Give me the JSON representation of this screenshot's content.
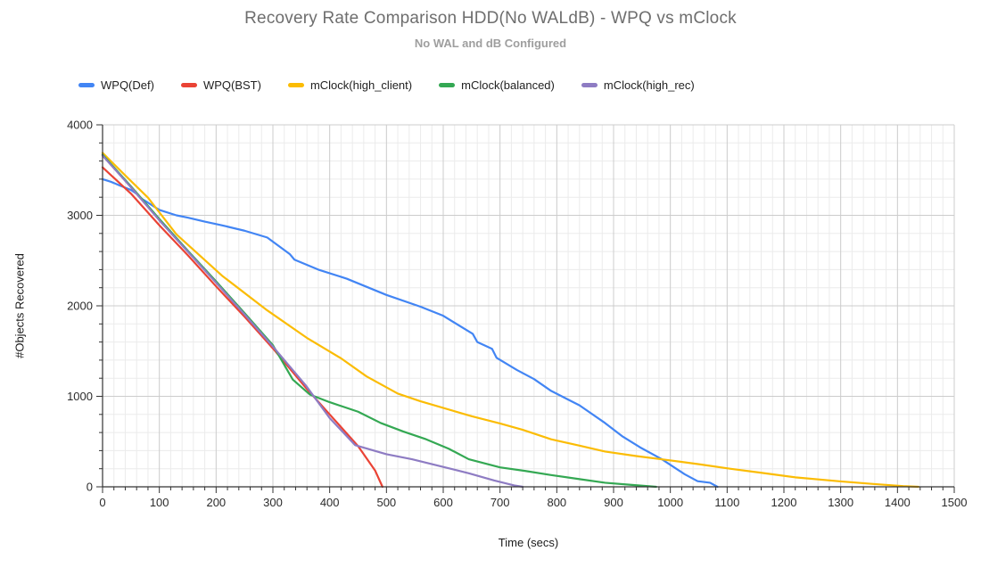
{
  "title": "Recovery Rate Comparison HDD(No WALdB) - WPQ vs mClock",
  "subtitle": "No WAL and dB Configured",
  "axes": {
    "x_label": "Time (secs)",
    "y_label": "#Objects Recovered"
  },
  "chart_data": {
    "type": "line",
    "title": "Recovery Rate Comparison HDD(No WALdB) - WPQ vs mClock",
    "subtitle": "No WAL and dB Configured",
    "xlabel": "Time (secs)",
    "ylabel": "#Objects Recovered",
    "xlim": [
      0,
      1500
    ],
    "ylim": [
      0,
      4000
    ],
    "x_major_step": 100,
    "x_minor_step": 20,
    "y_major_step": 1000,
    "y_minor_step": 200,
    "x_ticks": [
      0,
      100,
      200,
      300,
      400,
      500,
      600,
      700,
      800,
      900,
      1000,
      1100,
      1200,
      1300,
      1400,
      1500
    ],
    "y_ticks": [
      0,
      1000,
      2000,
      3000,
      4000
    ],
    "grid": true,
    "legend_position": "top",
    "colors": {
      "major_grid": "#cccccc",
      "minor_grid": "#ebebeb",
      "axis": "#333333"
    },
    "series": [
      {
        "name": "WPQ(Def)",
        "color": "#4285F4",
        "points": [
          [
            0,
            3400
          ],
          [
            15,
            3370
          ],
          [
            30,
            3330
          ],
          [
            50,
            3280
          ],
          [
            62,
            3230
          ],
          [
            66,
            3195
          ],
          [
            80,
            3140
          ],
          [
            100,
            3060
          ],
          [
            130,
            3000
          ],
          [
            150,
            2975
          ],
          [
            180,
            2930
          ],
          [
            210,
            2890
          ],
          [
            250,
            2830
          ],
          [
            290,
            2755
          ],
          [
            330,
            2570
          ],
          [
            338,
            2510
          ],
          [
            380,
            2400
          ],
          [
            430,
            2300
          ],
          [
            500,
            2120
          ],
          [
            560,
            1990
          ],
          [
            600,
            1890
          ],
          [
            652,
            1690
          ],
          [
            660,
            1600
          ],
          [
            686,
            1525
          ],
          [
            694,
            1425
          ],
          [
            730,
            1290
          ],
          [
            760,
            1190
          ],
          [
            790,
            1060
          ],
          [
            840,
            900
          ],
          [
            885,
            705
          ],
          [
            915,
            560
          ],
          [
            947,
            435
          ],
          [
            985,
            305
          ],
          [
            1025,
            140
          ],
          [
            1048,
            62
          ],
          [
            1070,
            45
          ],
          [
            1083,
            0
          ]
        ]
      },
      {
        "name": "WPQ(BST)",
        "color": "#EA4335",
        "points": [
          [
            0,
            3530
          ],
          [
            50,
            3240
          ],
          [
            100,
            2890
          ],
          [
            150,
            2560
          ],
          [
            200,
            2215
          ],
          [
            250,
            1880
          ],
          [
            300,
            1530
          ],
          [
            360,
            1080
          ],
          [
            400,
            800
          ],
          [
            450,
            450
          ],
          [
            480,
            180
          ],
          [
            493,
            0
          ]
        ]
      },
      {
        "name": "mClock(high_client)",
        "color": "#FBBC04",
        "points": [
          [
            0,
            3690
          ],
          [
            40,
            3440
          ],
          [
            80,
            3195
          ],
          [
            130,
            2790
          ],
          [
            210,
            2335
          ],
          [
            290,
            1950
          ],
          [
            360,
            1645
          ],
          [
            420,
            1420
          ],
          [
            465,
            1220
          ],
          [
            520,
            1030
          ],
          [
            560,
            945
          ],
          [
            650,
            780
          ],
          [
            700,
            700
          ],
          [
            740,
            630
          ],
          [
            790,
            525
          ],
          [
            840,
            455
          ],
          [
            885,
            390
          ],
          [
            940,
            340
          ],
          [
            990,
            300
          ],
          [
            1050,
            250
          ],
          [
            1105,
            200
          ],
          [
            1160,
            155
          ],
          [
            1220,
            105
          ],
          [
            1300,
            60
          ],
          [
            1360,
            30
          ],
          [
            1410,
            8
          ],
          [
            1437,
            0
          ]
        ]
      },
      {
        "name": "mClock(balanced)",
        "color": "#34A853",
        "points": [
          [
            0,
            3670
          ],
          [
            50,
            3320
          ],
          [
            100,
            2960
          ],
          [
            150,
            2610
          ],
          [
            200,
            2270
          ],
          [
            250,
            1920
          ],
          [
            300,
            1565
          ],
          [
            335,
            1185
          ],
          [
            365,
            1020
          ],
          [
            400,
            935
          ],
          [
            450,
            830
          ],
          [
            490,
            705
          ],
          [
            530,
            610
          ],
          [
            570,
            525
          ],
          [
            610,
            420
          ],
          [
            645,
            305
          ],
          [
            700,
            215
          ],
          [
            745,
            175
          ],
          [
            790,
            130
          ],
          [
            840,
            85
          ],
          [
            885,
            45
          ],
          [
            930,
            22
          ],
          [
            975,
            0
          ]
        ]
      },
      {
        "name": "mClock(high_rec)",
        "color": "#8E7CC3",
        "points": [
          [
            0,
            3660
          ],
          [
            50,
            3310
          ],
          [
            100,
            2945
          ],
          [
            150,
            2600
          ],
          [
            200,
            2255
          ],
          [
            250,
            1905
          ],
          [
            300,
            1550
          ],
          [
            358,
            1120
          ],
          [
            400,
            760
          ],
          [
            445,
            460
          ],
          [
            500,
            360
          ],
          [
            545,
            305
          ],
          [
            600,
            220
          ],
          [
            645,
            150
          ],
          [
            690,
            70
          ],
          [
            725,
            15
          ],
          [
            740,
            0
          ]
        ]
      }
    ]
  }
}
